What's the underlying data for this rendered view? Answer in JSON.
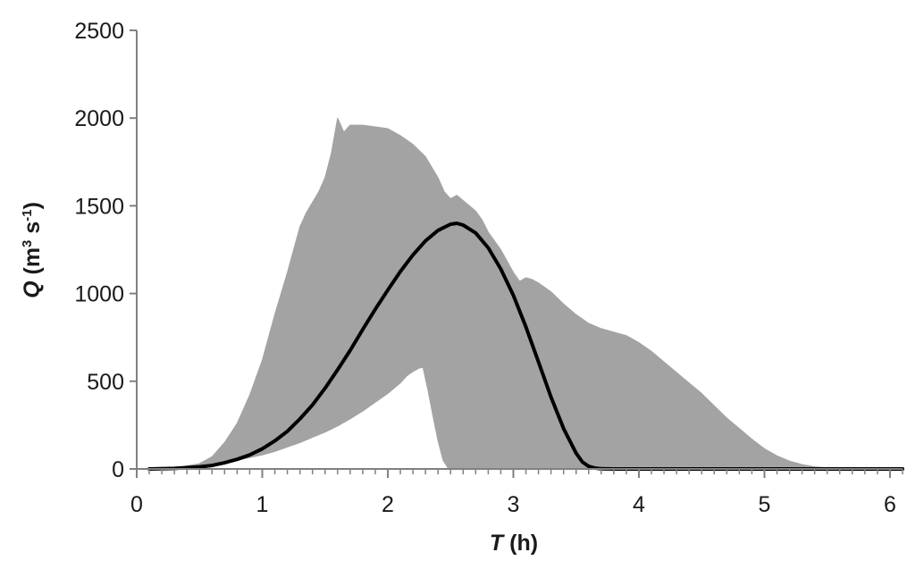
{
  "chart_data": {
    "type": "area",
    "title": "",
    "xlabel": {
      "var": "T",
      "unit": " (h)"
    },
    "ylabel": {
      "var": "Q",
      "open": " (m",
      "sup1": "3",
      "mid": " s",
      "sup2": "-1",
      "close": ")"
    },
    "xlim": [
      0,
      6.1
    ],
    "ylim": [
      0,
      2500
    ],
    "xticks": [
      0,
      1,
      2,
      3,
      4,
      5,
      6
    ],
    "xtick_labels": [
      "0",
      "1",
      "2",
      "3",
      "4",
      "5",
      "6"
    ],
    "x_minor_step": 0.1,
    "yticks": [
      0,
      500,
      1000,
      1500,
      2000,
      2500
    ],
    "ytick_labels": [
      "0",
      "500",
      "1000",
      "1500",
      "2000",
      "2500"
    ],
    "grid": false,
    "legend": "none",
    "colors": {
      "band": "#a3a3a3",
      "line": "#000000",
      "axis": "#808080"
    },
    "series": [
      {
        "kind": "band-upper",
        "x": [
          0.1,
          0.3,
          0.5,
          0.6,
          0.7,
          0.8,
          0.9,
          1.0,
          1.1,
          1.2,
          1.3,
          1.35,
          1.4,
          1.45,
          1.5,
          1.55,
          1.6,
          1.65,
          1.7,
          1.8,
          1.9,
          2.0,
          2.1,
          2.2,
          2.3,
          2.35,
          2.4,
          2.45,
          2.5,
          2.55,
          2.6,
          2.65,
          2.7,
          2.75,
          2.8,
          2.9,
          3.0,
          3.05,
          3.1,
          3.15,
          3.2,
          3.3,
          3.4,
          3.5,
          3.6,
          3.7,
          3.8,
          3.9,
          4.0,
          4.1,
          4.2,
          4.3,
          4.4,
          4.5,
          4.6,
          4.7,
          4.8,
          4.9,
          5.0,
          5.1,
          5.2,
          5.3,
          5.4,
          5.5,
          5.6,
          5.7,
          5.8,
          5.9,
          6.0,
          6.1
        ],
        "y": [
          0,
          5,
          30,
          70,
          150,
          260,
          420,
          620,
          880,
          1120,
          1380,
          1460,
          1520,
          1580,
          1660,
          1800,
          2000,
          1920,
          1960,
          1960,
          1950,
          1940,
          1900,
          1850,
          1780,
          1720,
          1660,
          1580,
          1540,
          1560,
          1530,
          1500,
          1470,
          1420,
          1350,
          1250,
          1120,
          1070,
          1090,
          1080,
          1060,
          1010,
          940,
          880,
          830,
          800,
          780,
          760,
          720,
          670,
          610,
          550,
          490,
          430,
          360,
          290,
          230,
          170,
          115,
          75,
          45,
          25,
          12,
          6,
          2,
          0,
          0,
          0,
          0,
          0
        ]
      },
      {
        "kind": "band-lower",
        "x": [
          0.1,
          0.3,
          0.5,
          0.6,
          0.7,
          0.8,
          0.9,
          1.0,
          1.1,
          1.2,
          1.3,
          1.4,
          1.5,
          1.6,
          1.7,
          1.8,
          1.9,
          2.0,
          2.1,
          2.15,
          2.2,
          2.25,
          2.28,
          2.32,
          2.36,
          2.4,
          2.44,
          2.48,
          2.5,
          2.6,
          3.0,
          4.0,
          5.0,
          6.0,
          6.1
        ],
        "y": [
          0,
          3,
          12,
          22,
          35,
          50,
          65,
          80,
          100,
          125,
          150,
          180,
          210,
          245,
          285,
          330,
          380,
          430,
          490,
          530,
          555,
          575,
          580,
          450,
          300,
          160,
          50,
          5,
          0,
          0,
          0,
          0,
          0,
          0,
          0
        ]
      },
      {
        "kind": "line",
        "x": [
          0.1,
          0.3,
          0.5,
          0.6,
          0.7,
          0.8,
          0.9,
          1.0,
          1.1,
          1.2,
          1.3,
          1.4,
          1.5,
          1.6,
          1.7,
          1.8,
          1.9,
          2.0,
          2.1,
          2.2,
          2.3,
          2.4,
          2.5,
          2.55,
          2.6,
          2.7,
          2.8,
          2.9,
          3.0,
          3.1,
          3.2,
          3.3,
          3.4,
          3.5,
          3.55,
          3.6,
          3.65,
          3.7,
          3.8,
          3.9,
          4.0,
          6.1
        ],
        "y": [
          0,
          3,
          12,
          20,
          35,
          55,
          80,
          115,
          160,
          215,
          285,
          365,
          460,
          565,
          675,
          795,
          910,
          1020,
          1125,
          1220,
          1300,
          1360,
          1395,
          1400,
          1390,
          1345,
          1260,
          1140,
          990,
          810,
          610,
          410,
          230,
          90,
          40,
          15,
          5,
          1,
          0,
          0,
          0,
          0
        ]
      }
    ]
  }
}
